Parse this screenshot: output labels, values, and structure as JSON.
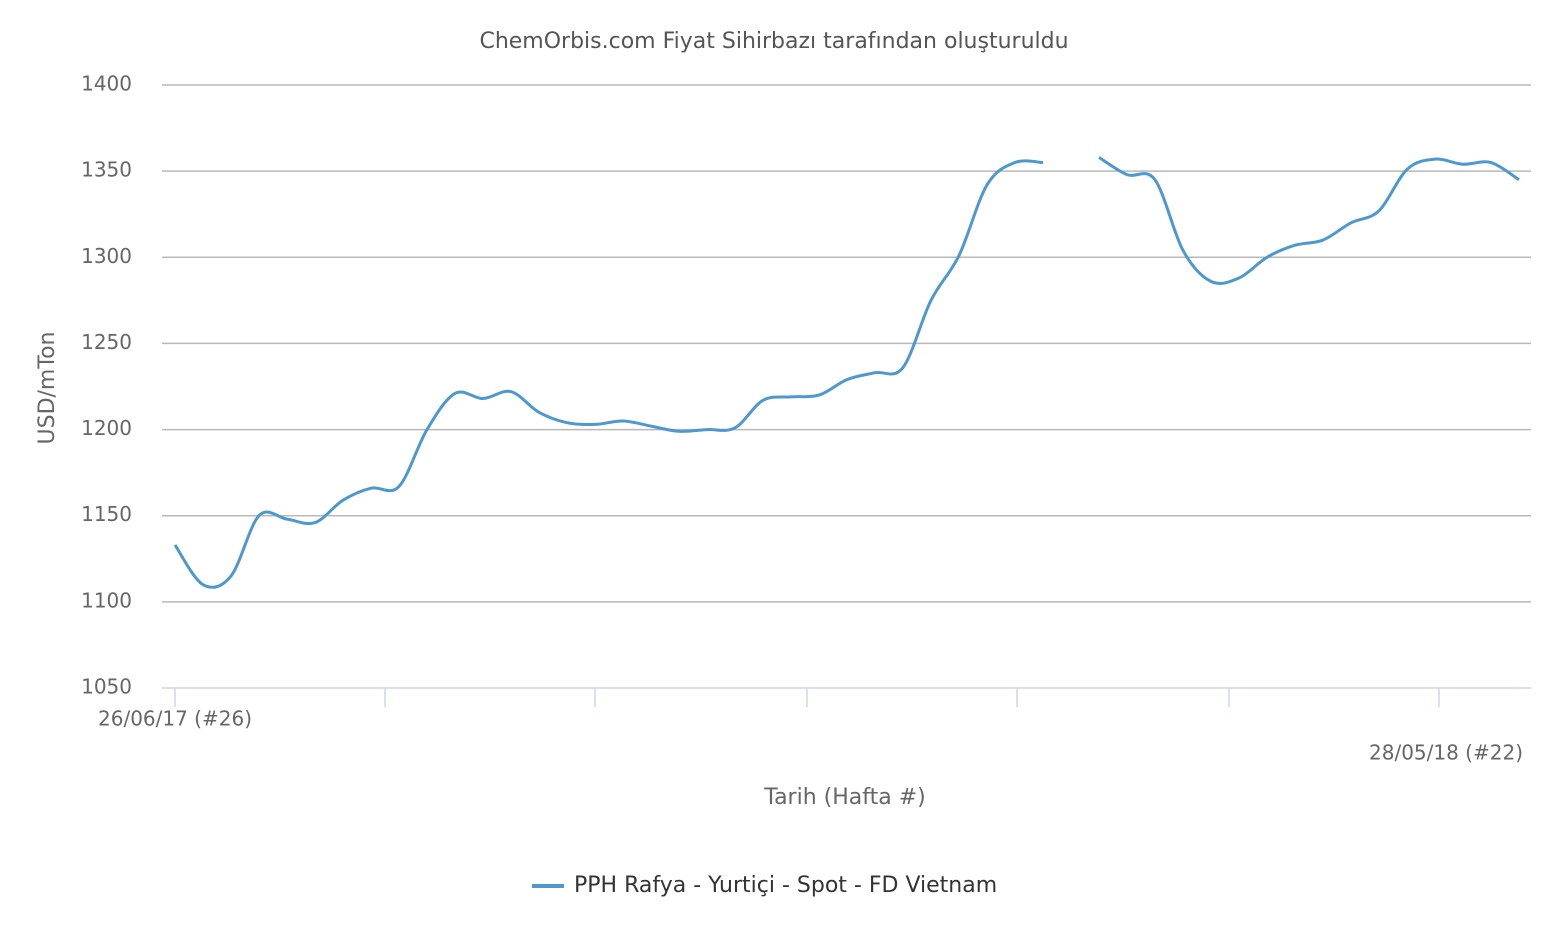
{
  "chart_data": {
    "type": "line",
    "title": "ChemOrbis.com Fiyat Sihirbazı tarafından oluşturuldu",
    "y_label": "USD/mTon",
    "x_label": "Tarih (Hafta #)",
    "categories": [
      "26/06/17 (#26)",
      null,
      null,
      null,
      null,
      null,
      null,
      null,
      null,
      null,
      null,
      null,
      null,
      null,
      null,
      null,
      null,
      null,
      null,
      null,
      null,
      null,
      null,
      null,
      null,
      null,
      null,
      null,
      null,
      null,
      null,
      null,
      null,
      null,
      null,
      null,
      null,
      null,
      null,
      null,
      null,
      null,
      null,
      null,
      null,
      null,
      null,
      null,
      "28/05/18 (#22)"
    ],
    "series": [
      {
        "name": "PPH Rafya - Yurtiçi - Spot - FD Vietnam",
        "color": "#4e98cf",
        "values": [
          1133,
          1110,
          1115,
          1150,
          1148,
          1146,
          1159,
          1166,
          1167,
          1200,
          1221,
          1218,
          1222,
          1210,
          1204,
          1203,
          1205,
          1202,
          1199,
          1200,
          1201,
          1217,
          1219,
          1220,
          1229,
          1233,
          1236,
          1275,
          1301,
          1342,
          1355,
          1355,
          null,
          1358,
          1348,
          1345,
          1304,
          1286,
          1288,
          1300,
          1307,
          1310,
          1320,
          1327,
          1351,
          1357,
          1354,
          1355,
          1345
        ]
      }
    ],
    "ylim": [
      1050,
      1400
    ],
    "yticks": [
      1050,
      1100,
      1150,
      1200,
      1250,
      1300,
      1350,
      1400
    ],
    "grid": true
  }
}
